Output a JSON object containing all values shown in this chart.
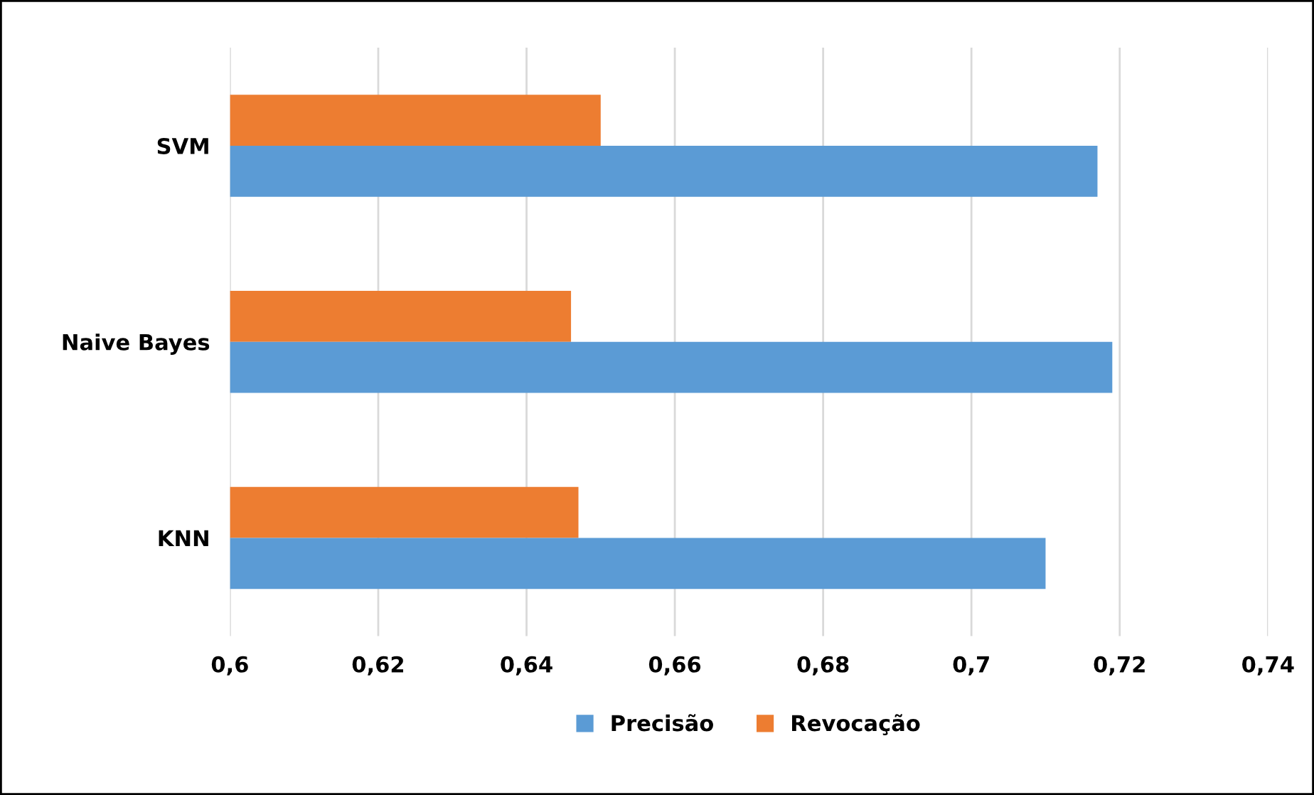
{
  "chart_data": {
    "type": "bar",
    "orientation": "horizontal",
    "categories": [
      "SVM",
      "Naive Bayes",
      "KNN"
    ],
    "series": [
      {
        "name": "Revocação",
        "color": "#ed7d31",
        "values": [
          0.65,
          0.646,
          0.647
        ]
      },
      {
        "name": "Precisão",
        "color": "#5b9bd5",
        "values": [
          0.717,
          0.719,
          0.71
        ]
      }
    ],
    "xlim": [
      0.6,
      0.74
    ],
    "xticks": [
      {
        "value": 0.6,
        "label": "0,6"
      },
      {
        "value": 0.62,
        "label": "0,62"
      },
      {
        "value": 0.64,
        "label": "0,64"
      },
      {
        "value": 0.66,
        "label": "0,66"
      },
      {
        "value": 0.68,
        "label": "0,68"
      },
      {
        "value": 0.7,
        "label": "0,7"
      },
      {
        "value": 0.72,
        "label": "0,72"
      },
      {
        "value": 0.74,
        "label": "0,74"
      }
    ],
    "grid": "x",
    "legend": "bottom"
  }
}
